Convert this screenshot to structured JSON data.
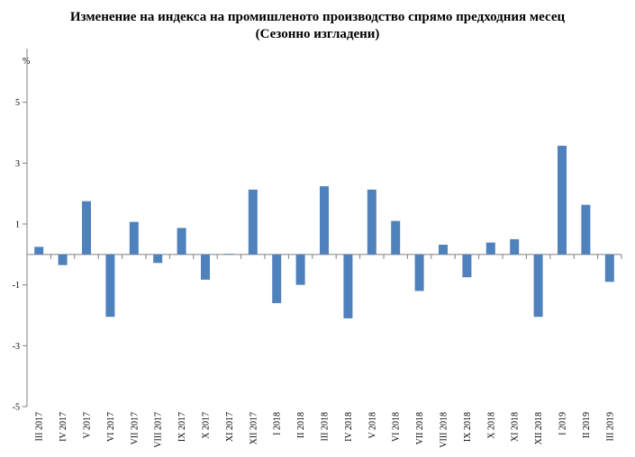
{
  "chart_data": {
    "type": "bar",
    "title": "Изменение на индекса на промишленото производство спрямо предходния месец",
    "subtitle": "(Сезонно изгладени)",
    "ylabel": "%",
    "xlabel": "",
    "ylim": [
      -5,
      7
    ],
    "yticks": [
      5,
      3,
      1,
      -1,
      -3,
      -5
    ],
    "grid": false,
    "bar_color": "#4f81bd",
    "categories": [
      "III 2017",
      "IV 2017",
      "V 2017",
      "VI 2017",
      "VII 2017",
      "VIII 2017",
      "IX 2017",
      "X 2017",
      "XI 2017",
      "XII 2017",
      "I 2018",
      "II 2018",
      "III 2018",
      "IV 2018",
      "V 2018",
      "VI 2018",
      "VII 2018",
      "VIII 2018",
      "IX 2018",
      "X 2018",
      "XI 2018",
      "XII 2018",
      "I 2019",
      "II 2019",
      "III 2019"
    ],
    "values": [
      0.25,
      -0.35,
      1.75,
      -2.05,
      1.07,
      -0.28,
      0.87,
      -0.83,
      0.02,
      2.13,
      -1.6,
      -1.0,
      2.24,
      -2.1,
      2.13,
      1.1,
      -1.2,
      0.32,
      -0.75,
      0.39,
      0.5,
      -2.05,
      3.57,
      1.63,
      -0.9
    ]
  }
}
